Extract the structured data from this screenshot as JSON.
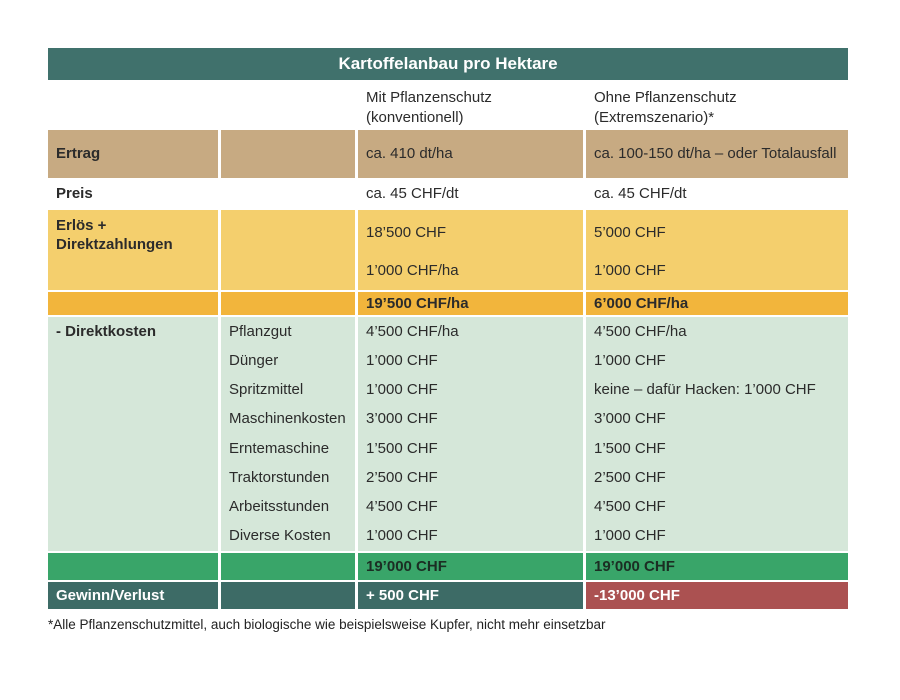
{
  "colors": {
    "teal": "#40716c",
    "teal-dark": "#3d6b66",
    "tan": "#c7aa82",
    "yellow": "#f4cf6d",
    "yellow-dark": "#f2b53c",
    "green-light": "#d5e7d9",
    "green": "#39a569",
    "red": "#ab5151",
    "text-dark": "#2b2b2b",
    "text-on-green": "#1b2d23"
  },
  "chart_data": {
    "type": "table",
    "title": "Kartoffelanbau pro Hektare",
    "col_headers": {
      "with": "Mit Pflanzenschutz\n(konventionell)",
      "without": "Ohne Pflanzenschutz\n(Extremszenario)*"
    },
    "rows": {
      "ertrag": {
        "label": "Ertrag",
        "with": "ca. 410 dt/ha",
        "without": "ca. 100-150 dt/ha – oder Totalausfall"
      },
      "preis": {
        "label": "Preis",
        "with": "ca. 45 CHF/dt",
        "without": "ca. 45 CHF/dt"
      },
      "erloes": {
        "label": "Erlös +\nDirektzahlungen",
        "with_1": "18’500 CHF",
        "with_2": "1’000 CHF/ha",
        "without_1": "5’000 CHF",
        "without_2": "1’000 CHF"
      },
      "erloes_total": {
        "with": "19’500 CHF/ha",
        "without": "6’000 CHF/ha"
      },
      "direktkosten": {
        "label": "- Direktkosten",
        "items": [
          {
            "name": "Pflanzgut",
            "with": "4’500 CHF/ha",
            "without": "4’500 CHF/ha"
          },
          {
            "name": "Dünger",
            "with": "1’000 CHF",
            "without": "1’000 CHF"
          },
          {
            "name": "Spritzmittel",
            "with": "1’000 CHF",
            "without": "keine – dafür Hacken: 1’000 CHF"
          },
          {
            "name": "Maschinenkosten",
            "with": "3’000 CHF",
            "without": "3’000 CHF"
          },
          {
            "name": "Erntemaschine",
            "with": "1’500 CHF",
            "without": "1’500 CHF"
          },
          {
            "name": "Traktorstunden",
            "with": "2’500 CHF",
            "without": "2’500 CHF"
          },
          {
            "name": "Arbeitsstunden",
            "with": "4’500 CHF",
            "without": "4’500 CHF"
          },
          {
            "name": "Diverse Kosten",
            "with": "1’000 CHF",
            "without": "1’000 CHF"
          }
        ]
      },
      "kosten_total": {
        "with": "19’000 CHF",
        "without": "19’000 CHF"
      },
      "gewinn": {
        "label": "Gewinn/Verlust",
        "with": "+ 500 CHF",
        "without": "-13’000 CHF"
      }
    },
    "footnote": "*Alle Pflanzenschutzmittel, auch biologische wie beispielsweise Kupfer, nicht mehr einsetzbar"
  }
}
